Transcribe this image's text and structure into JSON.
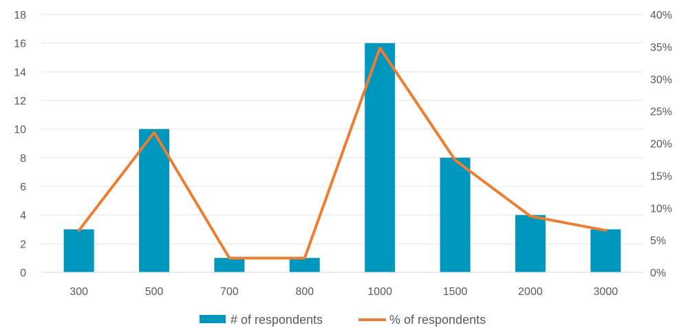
{
  "chart_data": {
    "type": "bar",
    "categories": [
      "300",
      "500",
      "700",
      "800",
      "1000",
      "1500",
      "2000",
      "3000"
    ],
    "series": [
      {
        "name": "# of respondents",
        "type": "bar",
        "axis": "left",
        "color": "#0097BF",
        "values": [
          3,
          10,
          1,
          1,
          16,
          8,
          4,
          3
        ]
      },
      {
        "name": "% of respondents",
        "type": "line",
        "axis": "right",
        "color": "#ED7D31",
        "values": [
          6.5,
          21.7,
          2.2,
          2.2,
          34.8,
          17.4,
          8.7,
          6.5
        ]
      }
    ],
    "y_left": {
      "min": 0,
      "max": 18,
      "ticks": [
        0,
        2,
        4,
        6,
        8,
        10,
        12,
        14,
        16,
        18
      ]
    },
    "y_right": {
      "min": 0,
      "max": 40,
      "ticks": [
        "0%",
        "5%",
        "10%",
        "15%",
        "20%",
        "25%",
        "30%",
        "35%",
        "40%"
      ]
    },
    "grid": true,
    "legend_position": "bottom",
    "title": "",
    "xlabel": "",
    "ylabel": ""
  }
}
